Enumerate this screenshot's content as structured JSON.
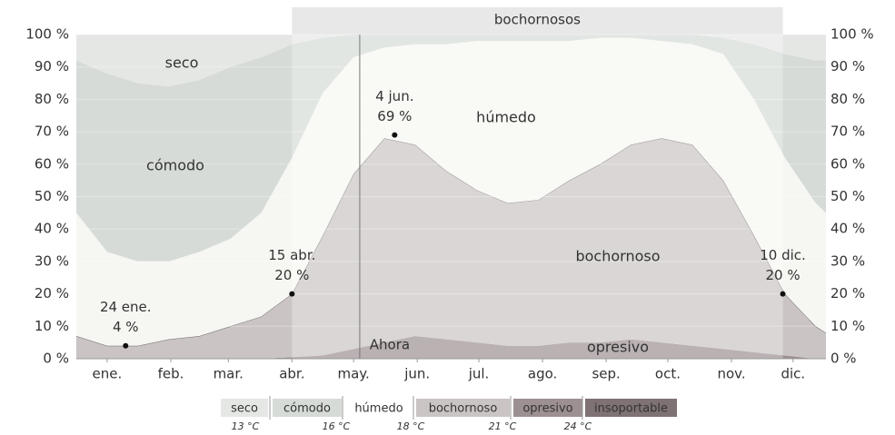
{
  "chart_data": {
    "type": "stacked_area",
    "x": [
      0,
      15,
      30,
      45,
      60,
      75,
      90,
      105,
      120,
      135,
      150,
      165,
      180,
      195,
      210,
      225,
      240,
      255,
      270,
      285,
      300,
      315,
      330,
      345,
      360,
      365
    ],
    "xlim": [
      0,
      365
    ],
    "xticks": [
      {
        "value": 15,
        "label": "ene."
      },
      {
        "value": 46,
        "label": "feb."
      },
      {
        "value": 74,
        "label": "mar."
      },
      {
        "value": 105,
        "label": "abr."
      },
      {
        "value": 135,
        "label": "may."
      },
      {
        "value": 166,
        "label": "jun."
      },
      {
        "value": 196,
        "label": "jul."
      },
      {
        "value": 227,
        "label": "ago."
      },
      {
        "value": 258,
        "label": "sep."
      },
      {
        "value": 288,
        "label": "oct."
      },
      {
        "value": 319,
        "label": "nov."
      },
      {
        "value": 349,
        "label": "dic."
      }
    ],
    "ylim": [
      0,
      100
    ],
    "yticks": [
      {
        "value": 0,
        "label": "0 %"
      },
      {
        "value": 10,
        "label": "10 %"
      },
      {
        "value": 20,
        "label": "20 %"
      },
      {
        "value": 30,
        "label": "30 %"
      },
      {
        "value": 40,
        "label": "40 %"
      },
      {
        "value": 50,
        "label": "50 %"
      },
      {
        "value": 60,
        "label": "60 %"
      },
      {
        "value": 70,
        "label": "70 %"
      },
      {
        "value": 80,
        "label": "80 %"
      },
      {
        "value": 90,
        "label": "90 %"
      },
      {
        "value": 100,
        "label": "100 %"
      }
    ],
    "series": [
      {
        "name": "insoportable",
        "color": "#7f7275",
        "values": [
          0,
          0,
          0,
          0,
          0,
          0,
          0,
          0,
          0,
          0,
          0,
          0,
          0,
          0,
          0,
          0,
          0,
          0,
          0,
          0,
          0,
          0,
          0,
          0,
          0,
          0
        ]
      },
      {
        "name": "opresivo",
        "color": "#9d9093",
        "values": [
          0,
          0,
          0,
          0,
          0,
          0,
          0,
          0.5,
          1,
          3,
          5,
          7,
          6,
          5,
          4,
          4,
          5,
          5,
          6,
          5,
          4,
          3,
          2,
          1,
          0,
          0
        ]
      },
      {
        "name": "bochornoso",
        "color": "#cbc4c4",
        "values": [
          7,
          4,
          4,
          6,
          7,
          10,
          13,
          19.5,
          37,
          54,
          63,
          59,
          52,
          47,
          44,
          45,
          50,
          55,
          60,
          63,
          62,
          52,
          36,
          19,
          10,
          8
        ]
      },
      {
        "name": "húmedo",
        "color": "#f6f6f2",
        "values": [
          38,
          29,
          26,
          24,
          26,
          27,
          32,
          42,
          44,
          36,
          28,
          31,
          39,
          46,
          50,
          49,
          43,
          39,
          33,
          30,
          31,
          39,
          42,
          42,
          38,
          37
        ]
      },
      {
        "name": "cómodo",
        "color": "#d6dbd7",
        "values": [
          47,
          55,
          55,
          54,
          53,
          53,
          48,
          35,
          17,
          7,
          4,
          3,
          3,
          2,
          2,
          2,
          2,
          1,
          1,
          2,
          3,
          5,
          17,
          32,
          44,
          47
        ]
      },
      {
        "name": "seco",
        "color": "#e5e7e5",
        "values": [
          8,
          12,
          15,
          16,
          14,
          10,
          7,
          3,
          1,
          0,
          0,
          0,
          0,
          0,
          0,
          0,
          0,
          0,
          0,
          0,
          0,
          1,
          3,
          6,
          8,
          8
        ]
      }
    ],
    "annotations": [
      {
        "label": "24 ene.",
        "value_label": "4 %",
        "x": 24,
        "y": 4
      },
      {
        "label": "15 abr.",
        "value_label": "20 %",
        "x": 105,
        "y": 20
      },
      {
        "label": "4 jun.",
        "value_label": "69 %",
        "x": 155,
        "y": 69
      },
      {
        "label": "10 dic.",
        "value_label": "20 %",
        "x": 344,
        "y": 20
      }
    ],
    "muggy_period": {
      "label": "bochornosos",
      "start": 105,
      "end": 344
    },
    "now": {
      "label": "Ahora",
      "x": 138
    },
    "legend_thresholds": [
      "13 °C",
      "16 °C",
      "18 °C",
      "21 °C",
      "24 °C"
    ]
  }
}
